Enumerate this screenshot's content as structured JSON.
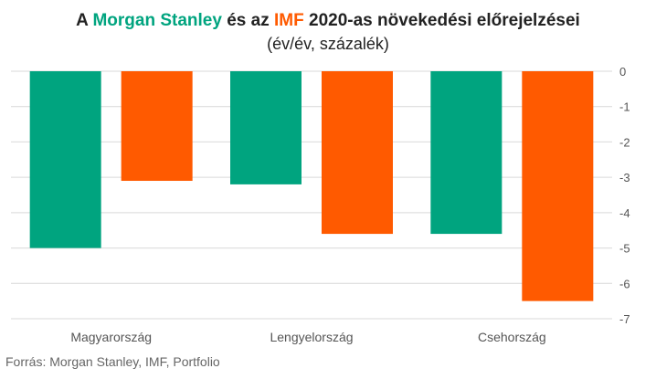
{
  "title": {
    "prefix": "A ",
    "series1": "Morgan Stanley",
    "middle": " és az ",
    "series2": "IMF",
    "suffix": " 2020-as növekedési előrejelzései"
  },
  "subtitle": "(év/év, százalék)",
  "source": "Forrás: Morgan Stanley, IMF, Portfolio",
  "colors": {
    "morgan_stanley": "#00A47F",
    "imf": "#FF5A00",
    "grid": "#D9D9D9",
    "text": "#555555"
  },
  "chart_data": {
    "type": "bar",
    "categories": [
      "Magyarország",
      "Lengyelország",
      "Csehország"
    ],
    "series": [
      {
        "name": "Morgan Stanley",
        "values": [
          -5.0,
          -3.2,
          -4.6
        ]
      },
      {
        "name": "IMF",
        "values": [
          -3.1,
          -4.6,
          -6.5
        ]
      }
    ],
    "ylim": [
      -7,
      0
    ],
    "yticks": [
      0,
      -1,
      -2,
      -3,
      -4,
      -5,
      -6,
      -7
    ],
    "y_axis_position": "right",
    "grid": true,
    "legend": "title"
  }
}
